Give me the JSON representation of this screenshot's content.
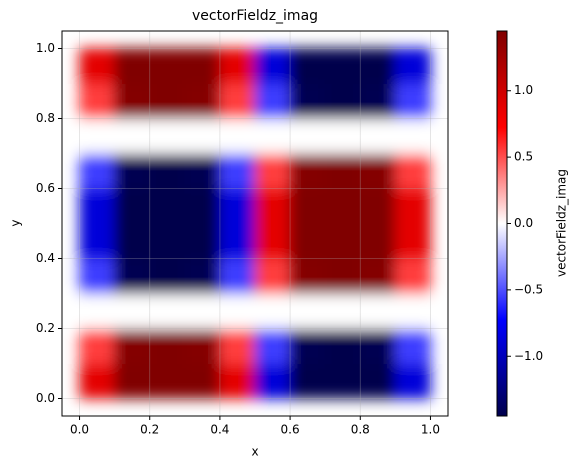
{
  "chart_data": {
    "type": "heatmap",
    "title": "vectorFieldz_imag",
    "x_label": "x",
    "y_label": "y",
    "colorbar_label": "vectorFieldz_imag",
    "x": [
      0.05,
      0.15,
      0.25,
      0.35,
      0.45,
      0.55,
      0.65,
      0.75,
      0.85,
      0.95
    ],
    "y": [
      0.05,
      0.15,
      0.25,
      0.35,
      0.45,
      0.55,
      0.65,
      0.75,
      0.85,
      0.95
    ],
    "z": [
      [
        0.88,
        1.45,
        1.45,
        1.45,
        0.88,
        -0.88,
        -1.45,
        -1.45,
        -1.45,
        -0.88
      ],
      [
        0.55,
        1.43,
        1.45,
        1.43,
        0.55,
        -0.55,
        -1.43,
        -1.45,
        -1.43,
        -0.55
      ],
      [
        0,
        0,
        0,
        0,
        0,
        0,
        0,
        0,
        0,
        0
      ],
      [
        -0.55,
        -1.43,
        -1.45,
        -1.43,
        -0.55,
        0.55,
        1.43,
        1.45,
        1.43,
        0.55
      ],
      [
        -0.88,
        -1.45,
        -1.45,
        -1.45,
        -0.88,
        0.88,
        1.45,
        1.45,
        1.45,
        0.88
      ],
      [
        -0.88,
        -1.45,
        -1.45,
        -1.45,
        -0.88,
        0.88,
        1.45,
        1.45,
        1.45,
        0.88
      ],
      [
        -0.55,
        -1.43,
        -1.45,
        -1.43,
        -0.55,
        0.55,
        1.43,
        1.45,
        1.43,
        0.55
      ],
      [
        0,
        0,
        0,
        0,
        0,
        0,
        0,
        0,
        0,
        0
      ],
      [
        0.55,
        1.43,
        1.45,
        1.43,
        0.55,
        -0.55,
        -1.43,
        -1.45,
        -1.43,
        -0.55
      ],
      [
        0.88,
        1.45,
        1.45,
        1.45,
        0.88,
        -0.88,
        -1.45,
        -1.45,
        -1.45,
        -0.88
      ]
    ],
    "colormap": "seismic",
    "xlim": [
      -0.05,
      1.05
    ],
    "ylim": [
      -0.05,
      1.05
    ],
    "clim": [
      -1.45,
      1.45
    ],
    "xticks": [
      {
        "value": 0,
        "label": "0.0"
      },
      0.2,
      0.4,
      0.6,
      0.8,
      {
        "value": 1,
        "label": "1.0"
      }
    ],
    "yticks": [
      {
        "value": 0,
        "label": "0.0"
      },
      0.2,
      0.4,
      0.6,
      0.8,
      {
        "value": 1,
        "label": "1.0"
      }
    ],
    "cticks": [
      {
        "value": -1,
        "label": "−1.0"
      },
      {
        "value": -0.5,
        "label": "−0.5"
      },
      {
        "value": 0,
        "label": "0.0"
      },
      0.5,
      {
        "value": 1,
        "label": "1.0"
      }
    ],
    "grid": true
  }
}
